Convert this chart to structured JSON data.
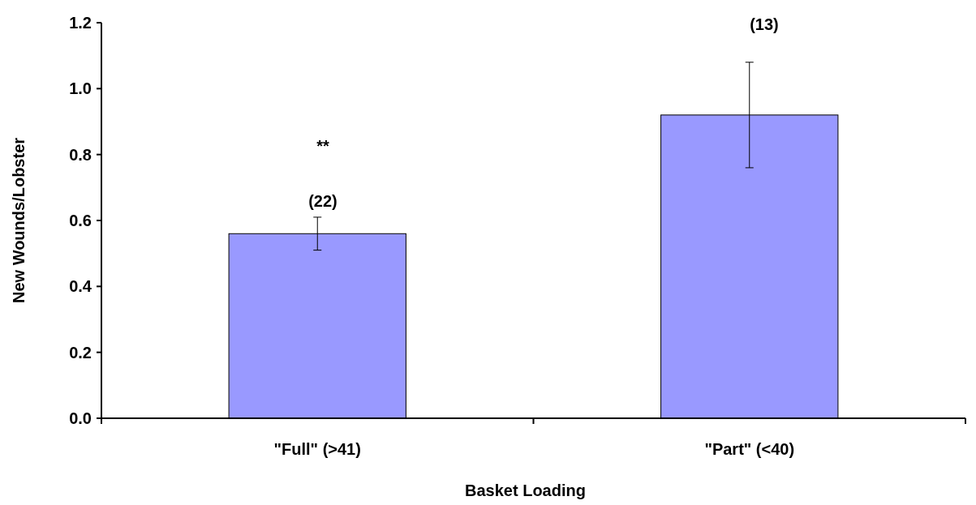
{
  "chart_data": {
    "type": "bar",
    "xlabel": "Basket Loading",
    "ylabel": "New Wounds/Lobster",
    "categories": [
      "\"Full\" (>41)",
      "\"Part\" (<40)"
    ],
    "series": [
      {
        "color": "#9999ff",
        "values": [
          0.56,
          0.92
        ],
        "errors": [
          0.05,
          0.16
        ]
      }
    ],
    "ylim": [
      0,
      1.2
    ],
    "yticks": [
      {
        "value": 0,
        "label": "0.0"
      },
      {
        "value": 0.2,
        "label": "0.2"
      },
      {
        "value": 0.4,
        "label": "0.4"
      },
      {
        "value": 0.6,
        "label": "0.6"
      },
      {
        "value": 0.8,
        "label": "0.8"
      },
      {
        "value": 1,
        "label": "1.0"
      },
      {
        "value": 1.2,
        "label": "1.2"
      }
    ],
    "annotations": [
      "(22)",
      "**",
      "(13)"
    ],
    "grid": false
  }
}
